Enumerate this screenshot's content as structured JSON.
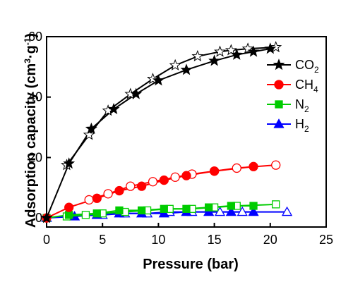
{
  "chart_data": {
    "type": "line",
    "xlabel": "Pressure (bar)",
    "ylabel_parts": [
      "Adsorption capacity (cm",
      "3",
      "·g",
      "-1",
      ")"
    ],
    "xlim": [
      0,
      25
    ],
    "ylim": [
      -3,
      60
    ],
    "xticks": [
      0,
      5,
      10,
      15,
      20,
      25
    ],
    "yticks": [
      0,
      20,
      40,
      60
    ],
    "legend_position": "right",
    "series": [
      {
        "name_parts": [
          "CO",
          "2"
        ],
        "color": "#000000",
        "marker": "star",
        "adsorption": {
          "x": [
            0,
            2,
            4,
            6,
            8,
            10,
            12.5,
            15,
            17,
            18.5,
            20
          ],
          "y": [
            0,
            18,
            29.5,
            36,
            41,
            45.5,
            49,
            52,
            54,
            55,
            56
          ]
        },
        "desorption": {
          "x": [
            20.5,
            18,
            16.5,
            15.5,
            13.5,
            11.5,
            9.5,
            7.5,
            5.5,
            3.8,
            1.8
          ],
          "y": [
            56.5,
            56,
            55.5,
            55,
            53.5,
            50.5,
            46,
            41,
            35.5,
            27.5,
            17.5
          ]
        }
      },
      {
        "name_parts": [
          "CH",
          "4"
        ],
        "color": "#ff0000",
        "marker": "circle",
        "adsorption": {
          "x": [
            0,
            2,
            4.5,
            6.5,
            8.5,
            10.5,
            12.5,
            15,
            18.5
          ],
          "y": [
            0,
            3.5,
            6.5,
            9,
            10.5,
            12.5,
            14,
            15.5,
            17
          ]
        },
        "desorption": {
          "x": [
            20.5,
            17,
            15,
            13,
            11.5,
            9.5,
            7.5,
            5.5,
            3.8
          ],
          "y": [
            17.5,
            16.5,
            15.5,
            14.5,
            13.5,
            12,
            10.5,
            8,
            6
          ]
        }
      },
      {
        "name_parts": [
          "N",
          "2"
        ],
        "color": "#00cc00",
        "marker": "square",
        "adsorption": {
          "x": [
            0,
            2,
            4.5,
            6.5,
            8.5,
            10.5,
            12.5,
            14.5,
            16.5,
            18.5
          ],
          "y": [
            0,
            1,
            1.5,
            2.5,
            2.5,
            3,
            3,
            3.5,
            4,
            4
          ]
        },
        "desorption": {
          "x": [
            20.5,
            17,
            15,
            13,
            11,
            9,
            7,
            5,
            3.5,
            1.8
          ],
          "y": [
            4.5,
            4,
            3.5,
            3,
            3,
            2.5,
            2,
            1.5,
            1,
            0.5
          ]
        }
      },
      {
        "name_parts": [
          "H",
          "2"
        ],
        "color": "#0000ff",
        "marker": "triangle",
        "adsorption": {
          "x": [
            0,
            2.5,
            4.5,
            6.5,
            8.5,
            10.5,
            12.5,
            14.5,
            16.5,
            18.5
          ],
          "y": [
            0,
            0.5,
            1,
            1.5,
            1.5,
            1.5,
            2,
            2,
            2,
            2
          ]
        },
        "desorption": {
          "x": [
            21.5,
            17.5,
            15.5,
            13,
            11,
            9,
            7,
            5
          ],
          "y": [
            2,
            2,
            2,
            2,
            2,
            1.5,
            1.5,
            1
          ]
        }
      }
    ]
  }
}
